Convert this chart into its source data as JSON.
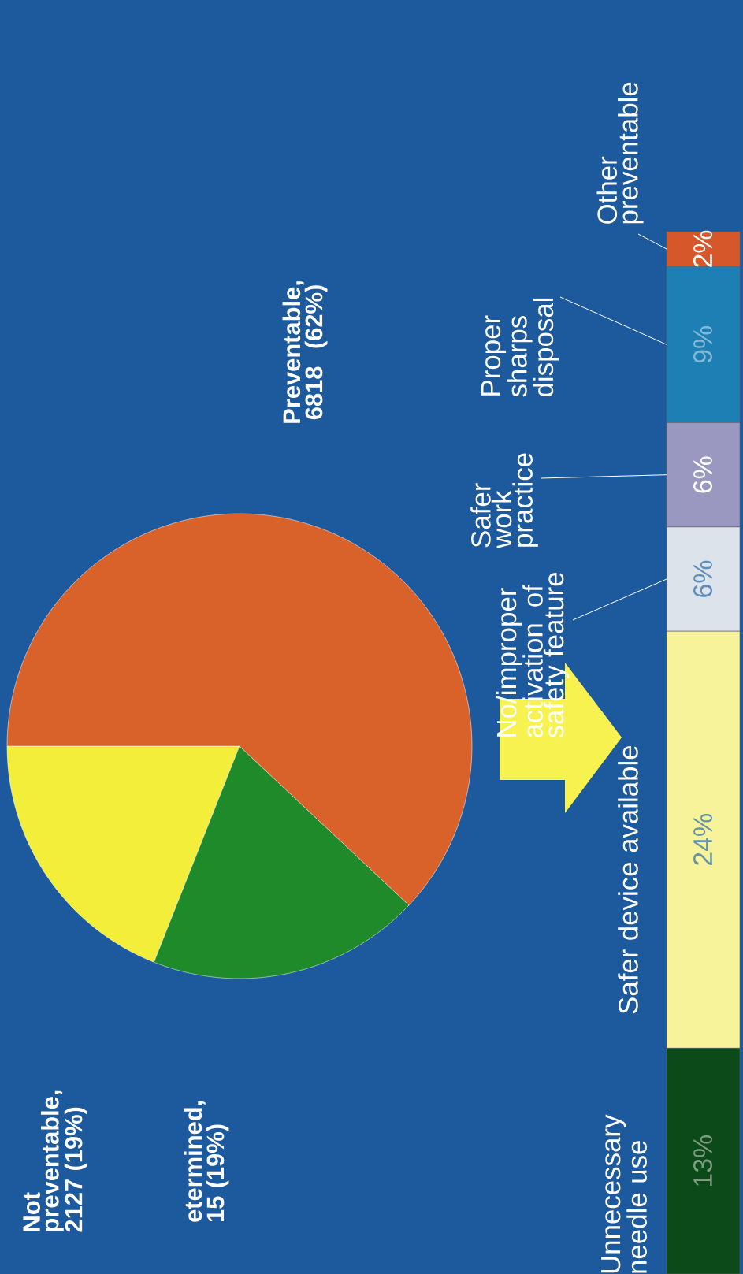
{
  "chart_data": [
    {
      "type": "pie",
      "categories": [
        "Not preventable, 2127 (19%)",
        "etermined, 15 (19%)",
        "Preventable, 6818 (62%)"
      ],
      "values": [
        19,
        19,
        62
      ],
      "colors": [
        "#f2ee3a",
        "#1f8a2a",
        "#d9622b"
      ]
    },
    {
      "type": "bar",
      "stacked": true,
      "categories": [
        null
      ],
      "series": [
        {
          "name": "Unnecessary needle use",
          "color": "#0d4a1a",
          "values": [
            13
          ],
          "value_labels": [
            "13%"
          ]
        },
        {
          "name": "Safer device available",
          "color": "#f7f39a",
          "values": [
            24
          ],
          "value_labels": [
            "24%"
          ]
        },
        {
          "name": "No/improper activation of safety feature",
          "color": "#dde3ea",
          "values": [
            6
          ],
          "value_labels": [
            "6%"
          ]
        },
        {
          "name": "Safer work practice",
          "color": "#9a98c0",
          "values": [
            6
          ],
          "value_labels": [
            "6%"
          ]
        },
        {
          "name": "Proper sharps disposal",
          "color": "#1e7fb5",
          "values": [
            9
          ],
          "value_labels": [
            "9%"
          ]
        },
        {
          "name": "Other preventable",
          "color": "#d6582a",
          "values": [
            2
          ],
          "value_labels": [
            "2%"
          ]
        }
      ]
    }
  ]
}
